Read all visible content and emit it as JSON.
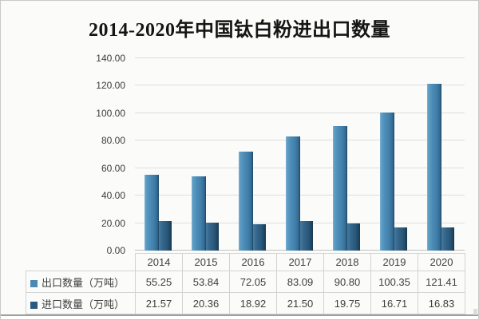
{
  "title": "2014-2020年中国钛白粉进出口数量",
  "colors": {
    "export_bar": "#4b8ab5",
    "import_bar": "#2a5878",
    "export_swatch": "#4c89b2",
    "import_swatch": "#2a5a7e",
    "gridline": "#dedede",
    "table_border": "#d3d3d3",
    "text": "#3e3e3e"
  },
  "chart_data": {
    "type": "bar",
    "title": "2014-2020年中国钛白粉进出口数量",
    "categories": [
      "2014",
      "2015",
      "2016",
      "2017",
      "2018",
      "2019",
      "2020"
    ],
    "series": [
      {
        "name": "出口数量（万吨）",
        "color": "#4c89b2",
        "values": [
          55.25,
          53.84,
          72.05,
          83.09,
          90.8,
          100.35,
          121.41
        ]
      },
      {
        "name": "进口数量（万吨）",
        "color": "#2a5a7e",
        "values": [
          21.57,
          20.36,
          18.92,
          21.5,
          19.75,
          16.71,
          16.83
        ]
      }
    ],
    "xlabel": "",
    "ylabel": "",
    "ylim": [
      0,
      140
    ],
    "ytick_step": 20,
    "ytick_labels": [
      "0.00",
      "20.00",
      "40.00",
      "60.00",
      "80.00",
      "100.00",
      "120.00",
      "140.00"
    ],
    "grid": true,
    "legend_position": "table-below",
    "value_decimals": 2
  }
}
